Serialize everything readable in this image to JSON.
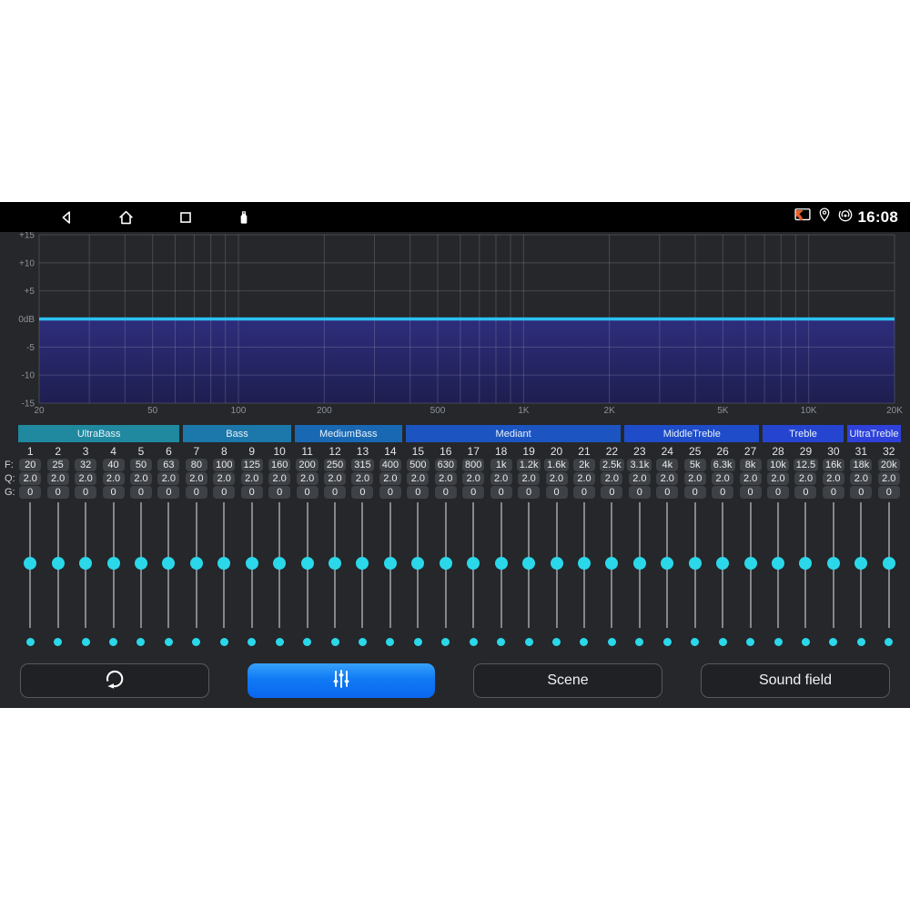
{
  "status_bar": {
    "time": "16:08",
    "left_icons": [
      "back",
      "home",
      "recents",
      "usb"
    ],
    "right_icons": [
      "screen-cast",
      "location",
      "hotspot"
    ]
  },
  "chart_data": {
    "type": "line",
    "title": "EQ frequency response",
    "x_scale": "log",
    "xlim": [
      20,
      20000
    ],
    "ylim": [
      -15,
      15
    ],
    "grid": true,
    "x_ticks": [
      {
        "value": 20,
        "label": "20"
      },
      {
        "value": 50,
        "label": "50"
      },
      {
        "value": 100,
        "label": "100"
      },
      {
        "value": 200,
        "label": "200"
      },
      {
        "value": 500,
        "label": "500"
      },
      {
        "value": 1000,
        "label": "1K"
      },
      {
        "value": 2000,
        "label": "2K"
      },
      {
        "value": 5000,
        "label": "5K"
      },
      {
        "value": 10000,
        "label": "10K"
      },
      {
        "value": 20000,
        "label": "20K"
      }
    ],
    "x_grid": [
      20,
      30,
      40,
      50,
      60,
      70,
      80,
      90,
      100,
      200,
      300,
      400,
      500,
      600,
      700,
      800,
      900,
      1000,
      2000,
      3000,
      4000,
      5000,
      6000,
      7000,
      8000,
      9000,
      10000,
      20000
    ],
    "y_ticks": [
      {
        "value": 15,
        "label": "+15"
      },
      {
        "value": 10,
        "label": "+10"
      },
      {
        "value": 5,
        "label": "+5"
      },
      {
        "value": 0,
        "label": "0dB"
      },
      {
        "value": -5,
        "label": "-5"
      },
      {
        "value": -10,
        "label": "-10"
      },
      {
        "value": -15,
        "label": "-15"
      }
    ],
    "response_db": 0,
    "line_color": "#2bc2f2",
    "fill_top_color": "#2e2d7c",
    "fill_bottom_color": "#1e1e50",
    "grid_color": "rgba(255,255,255,0.16)",
    "tick_text_color": "#8d939b"
  },
  "band_groups": [
    {
      "label": "UltraBass",
      "span": 6,
      "color": "#20889f"
    },
    {
      "label": "Bass",
      "span": 4,
      "color": "#1c77aa"
    },
    {
      "label": "MediumBass",
      "span": 4,
      "color": "#1968b3"
    },
    {
      "label": "Mediant",
      "span": 8,
      "color": "#1c55c1"
    },
    {
      "label": "MiddleTreble",
      "span": 5,
      "color": "#1f4cc9"
    },
    {
      "label": "Treble",
      "span": 3,
      "color": "#2545d1"
    },
    {
      "label": "UltraTreble",
      "span": 2,
      "color": "#2e41da"
    }
  ],
  "row_labels": {
    "f": "F:",
    "q": "Q:",
    "g": "G:"
  },
  "bands": [
    {
      "n": "1",
      "f": "20",
      "q": "2.0",
      "g": "0"
    },
    {
      "n": "2",
      "f": "25",
      "q": "2.0",
      "g": "0"
    },
    {
      "n": "3",
      "f": "32",
      "q": "2.0",
      "g": "0"
    },
    {
      "n": "4",
      "f": "40",
      "q": "2.0",
      "g": "0"
    },
    {
      "n": "5",
      "f": "50",
      "q": "2.0",
      "g": "0"
    },
    {
      "n": "6",
      "f": "63",
      "q": "2.0",
      "g": "0"
    },
    {
      "n": "7",
      "f": "80",
      "q": "2.0",
      "g": "0"
    },
    {
      "n": "8",
      "f": "100",
      "q": "2.0",
      "g": "0"
    },
    {
      "n": "9",
      "f": "125",
      "q": "2.0",
      "g": "0"
    },
    {
      "n": "10",
      "f": "160",
      "q": "2.0",
      "g": "0"
    },
    {
      "n": "11",
      "f": "200",
      "q": "2.0",
      "g": "0"
    },
    {
      "n": "12",
      "f": "250",
      "q": "2.0",
      "g": "0"
    },
    {
      "n": "13",
      "f": "315",
      "q": "2.0",
      "g": "0"
    },
    {
      "n": "14",
      "f": "400",
      "q": "2.0",
      "g": "0"
    },
    {
      "n": "15",
      "f": "500",
      "q": "2.0",
      "g": "0"
    },
    {
      "n": "16",
      "f": "630",
      "q": "2.0",
      "g": "0"
    },
    {
      "n": "17",
      "f": "800",
      "q": "2.0",
      "g": "0"
    },
    {
      "n": "18",
      "f": "1k",
      "q": "2.0",
      "g": "0"
    },
    {
      "n": "19",
      "f": "1.2k",
      "q": "2.0",
      "g": "0"
    },
    {
      "n": "20",
      "f": "1.6k",
      "q": "2.0",
      "g": "0"
    },
    {
      "n": "21",
      "f": "2k",
      "q": "2.0",
      "g": "0"
    },
    {
      "n": "22",
      "f": "2.5k",
      "q": "2.0",
      "g": "0"
    },
    {
      "n": "23",
      "f": "3.1k",
      "q": "2.0",
      "g": "0"
    },
    {
      "n": "24",
      "f": "4k",
      "q": "2.0",
      "g": "0"
    },
    {
      "n": "25",
      "f": "5k",
      "q": "2.0",
      "g": "0"
    },
    {
      "n": "26",
      "f": "6.3k",
      "q": "2.0",
      "g": "0"
    },
    {
      "n": "27",
      "f": "8k",
      "q": "2.0",
      "g": "0"
    },
    {
      "n": "28",
      "f": "10k",
      "q": "2.0",
      "g": "0"
    },
    {
      "n": "29",
      "f": "12.5",
      "q": "2.0",
      "g": "0"
    },
    {
      "n": "30",
      "f": "16k",
      "q": "2.0",
      "g": "0"
    },
    {
      "n": "31",
      "f": "18k",
      "q": "2.0",
      "g": "0"
    },
    {
      "n": "32",
      "f": "20k",
      "q": "2.0",
      "g": "0"
    }
  ],
  "sliders": {
    "count": 32,
    "value_pct": 48,
    "thumb_color": "#2ad8e9"
  },
  "buttons": {
    "reset_icon": "reset-circular-arrow",
    "eq_icon": "equalizer-sliders",
    "scene_label": "Scene",
    "sound_field_label": "Sound field"
  }
}
